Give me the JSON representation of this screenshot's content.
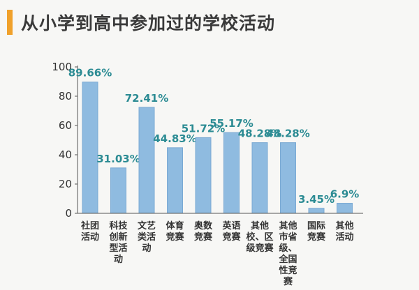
{
  "title": "从小学到高中参加过的学校活动",
  "colors": {
    "bar": "#8fbbe0",
    "bar_stroke": "#7aa9d3",
    "value_label": "#2b8b93",
    "accent": "#f0a12b",
    "axis": "#555555"
  },
  "chart_data": {
    "type": "bar",
    "categories": [
      [
        "社团",
        "活动"
      ],
      [
        "科技",
        "创新",
        "型活",
        "动"
      ],
      [
        "文艺",
        "类活",
        "动"
      ],
      [
        "体育",
        "竞赛"
      ],
      [
        "奥数",
        "竞赛"
      ],
      [
        "英语",
        "竞赛"
      ],
      [
        "其他",
        "校、区",
        "级竞赛"
      ],
      [
        "其他",
        "市省",
        "级、",
        "全国",
        "性竞",
        "赛"
      ],
      [
        "国际",
        "竞赛"
      ],
      [
        "其他",
        "活动"
      ]
    ],
    "values": [
      89.66,
      31.03,
      72.41,
      44.83,
      51.72,
      55.17,
      48.28,
      48.28,
      3.45,
      6.9
    ],
    "value_labels": [
      "89.66%",
      "31.03%",
      "72.41%",
      "44.83%",
      "51.72%",
      "55.17%",
      "48.28%",
      "48.28%",
      "3.45%",
      "6.9%"
    ],
    "ylim": [
      0,
      100
    ],
    "yticks": [
      "0",
      "20",
      "40",
      "60",
      "80",
      "100"
    ],
    "grid": false
  }
}
